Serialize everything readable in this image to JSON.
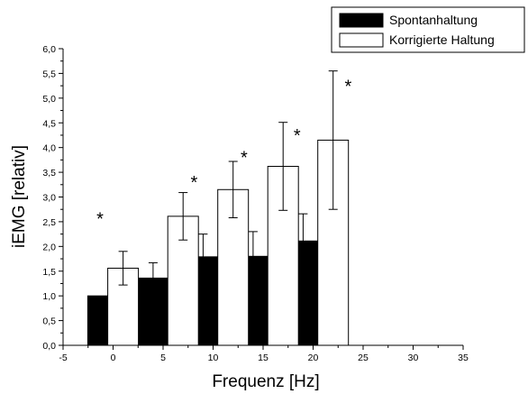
{
  "chart_data": {
    "type": "bar",
    "title": "",
    "xlabel": "Frequenz [Hz]",
    "ylabel": "iEMG [relativ]",
    "xlim": [
      -5,
      35
    ],
    "ylim": [
      0,
      6.0
    ],
    "x_ticks": [
      -5,
      0,
      5,
      10,
      15,
      20,
      25,
      30,
      35
    ],
    "x_tick_labels": [
      "-5",
      "0",
      "5",
      "10",
      "15",
      "20",
      "25",
      "30",
      "35"
    ],
    "y_ticks": [
      0,
      0.5,
      1.0,
      1.5,
      2.0,
      2.5,
      3.0,
      3.5,
      4.0,
      4.5,
      5.0,
      5.5,
      6.0
    ],
    "y_tick_labels": [
      "0,0",
      "0,5",
      "1,0",
      "1,5",
      "2,0",
      "2,5",
      "3,0",
      "3,5",
      "4,0",
      "4,5",
      "5,0",
      "5,5",
      "6,0"
    ],
    "grid": false,
    "legend_position": "top-right",
    "significance_marker": "*",
    "series": [
      {
        "name": "Spontanhaltung",
        "color": "#000000",
        "x": [
          -1.0,
          4.0,
          9.0,
          14.0,
          19.0
        ],
        "values": [
          1.0,
          1.36,
          1.79,
          1.8,
          2.11
        ],
        "error": [
          0.0,
          0.31,
          0.46,
          0.5,
          0.55
        ]
      },
      {
        "name": "Korrigierte Haltung",
        "color": "#ffffff",
        "x": [
          1.0,
          7.0,
          12.0,
          17.0,
          22.0
        ],
        "values": [
          1.56,
          2.61,
          3.15,
          3.62,
          4.15
        ],
        "error": [
          0.34,
          0.48,
          0.57,
          0.89,
          1.4
        ]
      }
    ],
    "annotations": [
      {
        "text": "*",
        "x": -1.3,
        "y": 2.62
      },
      {
        "text": "*",
        "x": 8.1,
        "y": 3.36
      },
      {
        "text": "*",
        "x": 13.1,
        "y": 3.86
      },
      {
        "text": "*",
        "x": 18.4,
        "y": 4.3
      },
      {
        "text": "*",
        "x": 23.5,
        "y": 5.3
      }
    ]
  }
}
